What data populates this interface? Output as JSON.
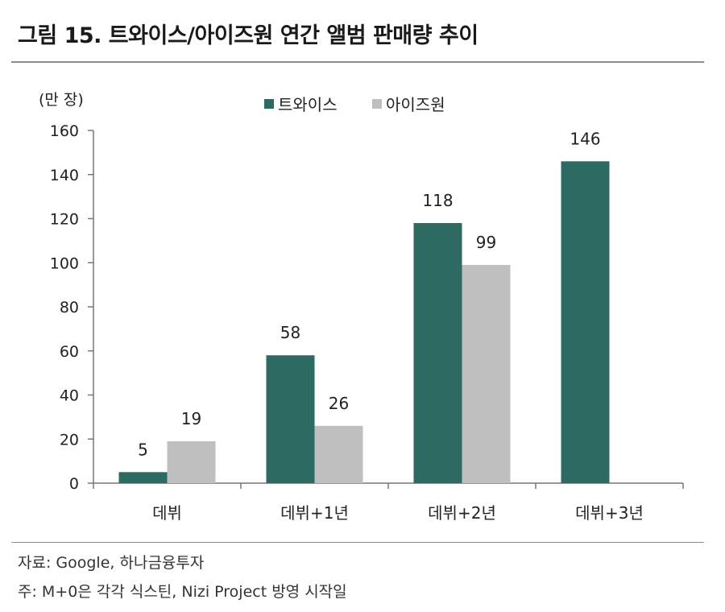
{
  "title": "그림 15. 트와이스/아이즈원 연간 앨범 판매량 추이",
  "footer": {
    "source": "자료: Google, 하나금융투자",
    "note": "주: M+0은 각각 식스틴, Nizi Project 방영 시작일"
  },
  "colors": {
    "twice": "#2d6a62",
    "izone": "#bfbfbf"
  },
  "chart_data": {
    "type": "bar",
    "unit_label": "(만 장)",
    "categories": [
      "데뷔",
      "데뷔+1년",
      "데뷔+2년",
      "데뷔+3년"
    ],
    "series": [
      {
        "name": "트와이스",
        "values": [
          5,
          58,
          118,
          146
        ]
      },
      {
        "name": "아이즈원",
        "values": [
          19,
          26,
          99,
          null
        ]
      }
    ],
    "data_labels": [
      [
        "5",
        "58",
        "118",
        "146"
      ],
      [
        "19",
        "26",
        "99",
        ""
      ]
    ],
    "ylim": [
      0,
      160
    ],
    "yticks": [
      0,
      20,
      40,
      60,
      80,
      100,
      120,
      140,
      160
    ],
    "ytick_labels": [
      "0",
      "20",
      "40",
      "60",
      "80",
      "100",
      "120",
      "140",
      "160"
    ],
    "legend_position": "top-center",
    "grid": false
  }
}
